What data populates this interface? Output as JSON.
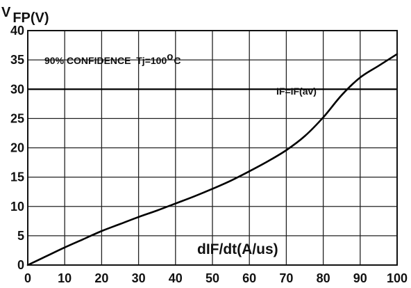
{
  "chart_data": {
    "type": "line",
    "title": "",
    "ylabel_main": "V",
    "ylabel_sub": "FP(V)",
    "xlabel": "dIF/dt(A/us)",
    "xlim": [
      0,
      100
    ],
    "ylim": [
      0,
      40
    ],
    "x_ticks": [
      0,
      10,
      20,
      30,
      40,
      50,
      60,
      70,
      80,
      90,
      100
    ],
    "y_ticks": [
      0,
      5,
      10,
      15,
      20,
      25,
      30,
      35,
      40
    ],
    "grid": true,
    "annotation": {
      "text": "90% CONFIDENCE  Tj=100",
      "sup": "o",
      "unit": "C"
    },
    "reference_line": {
      "label": "IF=IF(av)",
      "y": 30
    },
    "series": [
      {
        "x": [
          0,
          5,
          10,
          15,
          20,
          25,
          30,
          35,
          40,
          45,
          50,
          55,
          60,
          65,
          70,
          75,
          80,
          85,
          90,
          95,
          100
        ],
        "y": [
          0,
          1.5,
          3.0,
          4.4,
          5.8,
          7.0,
          8.2,
          9.3,
          10.5,
          11.7,
          13.0,
          14.4,
          16.0,
          17.7,
          19.6,
          22.0,
          25.2,
          29.0,
          32.0,
          34.0,
          36.0
        ],
        "color": "#000000"
      }
    ],
    "colors": {
      "axis": "#111111",
      "grid": "#222222",
      "curve": "#000000",
      "background": "#ffffff"
    }
  }
}
